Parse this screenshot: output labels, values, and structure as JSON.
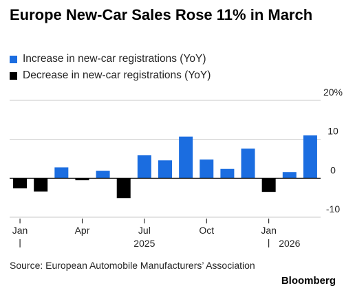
{
  "title": "Europe New-Car Sales Rose 11% in March",
  "legend": [
    {
      "label": "Increase in new-car registrations (YoY)",
      "color": "#1b6de0"
    },
    {
      "label": "Decrease in new-car registrations (YoY)",
      "color": "#000000"
    }
  ],
  "source": "Source: European Automobile Manufacturers’ Association",
  "brand": "Bloomberg",
  "chart_data": {
    "type": "bar",
    "categories": [
      "Jan 2025",
      "Feb 2025",
      "Mar 2025",
      "Apr 2025",
      "May 2025",
      "Jun 2025",
      "Jul 2025",
      "Aug 2025",
      "Sep 2025",
      "Oct 2025",
      "Nov 2025",
      "Dec 2025",
      "Jan 2026",
      "Feb 2026",
      "Mar 2026"
    ],
    "values": [
      -2.6,
      -3.4,
      2.8,
      -0.5,
      1.9,
      -5.1,
      5.9,
      4.6,
      10.7,
      4.8,
      2.4,
      7.6,
      -3.5,
      1.6,
      11.0
    ],
    "x_tick_labels": [
      {
        "index": 0,
        "label": "Jan"
      },
      {
        "index": 3,
        "label": "Apr"
      },
      {
        "index": 6,
        "label": "Jul"
      },
      {
        "index": 9,
        "label": "Oct"
      },
      {
        "index": 12,
        "label": "Jan"
      }
    ],
    "year_labels": [
      {
        "index": 6,
        "label": "2025"
      },
      {
        "index": 13,
        "label": "2026"
      }
    ],
    "y_ticks": [
      {
        "value": 20,
        "label": "20%"
      },
      {
        "value": 10,
        "label": "10"
      },
      {
        "value": 0,
        "label": "0"
      },
      {
        "value": -10,
        "label": "-10"
      }
    ],
    "ylim": [
      -10,
      20
    ],
    "positive_color": "#1b6de0",
    "negative_color": "#000000",
    "grid": true,
    "legend_position": "top-left"
  }
}
